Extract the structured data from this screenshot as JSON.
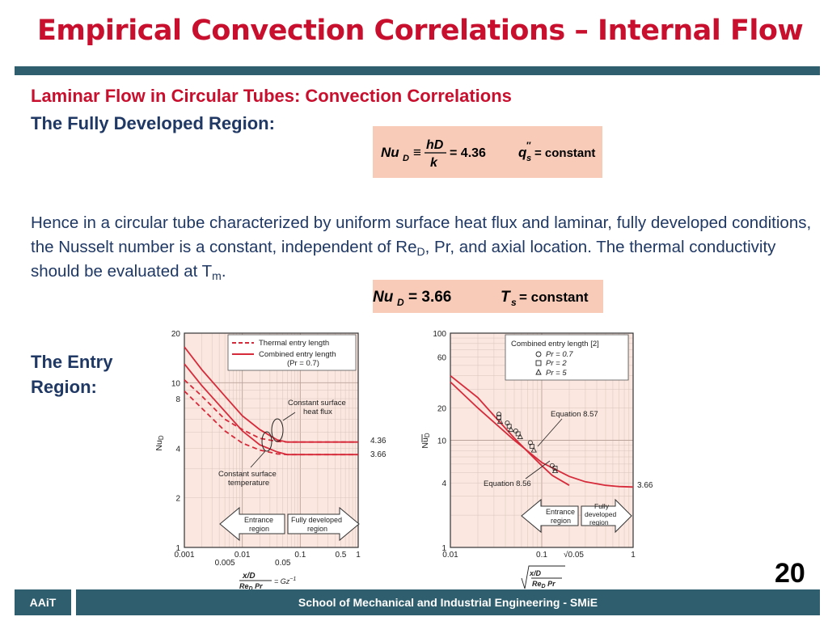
{
  "slide": {
    "title": "Empirical Convection Correlations – Internal Flow",
    "subtitle": "Laminar Flow in Circular Tubes: Convection Correlations",
    "fully_developed_heading": "The Fully Developed Region:",
    "paragraph": {
      "part1": "Hence in a circular tube characterized by uniform surface heat flux and laminar, fully developed conditions, the Nusselt number is a constant, independent of Re",
      "sub1": "D",
      "part2": ", Pr, and axial location. The thermal conductivity should be evaluated at T",
      "sub2": "m",
      "part3": "."
    },
    "entry_heading": "The Entry Region:",
    "equation1": {
      "lhs": "Nu",
      "lhs_sub": "D",
      "frac_num": "hD",
      "frac_den": "k",
      "value": "= 4.36",
      "rhs": "q",
      "rhs_sub": "s",
      "rhs_sup": "″",
      "rhs_value": "= constant"
    },
    "equation2": {
      "lhs": "Nu",
      "lhs_sub": "D",
      "value": "= 3.66",
      "rhs": "T",
      "rhs_sub": "s",
      "rhs_value": "= constant"
    },
    "page_number": "20",
    "footer": {
      "left": "AAiT",
      "main": "School of Mechanical and Industrial Engineering - SMiE"
    }
  },
  "chart_data": [
    {
      "type": "line",
      "xlabel": "x/D / Re_D Pr = Gz⁻¹",
      "ylabel": "Nu_D",
      "x_scale": "log",
      "y_scale": "log",
      "xlim": [
        0.001,
        1
      ],
      "ylim": [
        1,
        20
      ],
      "x_ticks": [
        "0.001",
        "0.005",
        "0.01",
        "0.05",
        "0.1",
        "0.5",
        "1"
      ],
      "y_ticks": [
        "20",
        "10",
        "8",
        "4",
        "2",
        "1"
      ],
      "legend": {
        "position": "top-right",
        "entries": [
          "Thermal entry length",
          "Combined entry length",
          "(Pr = 0.7)"
        ]
      },
      "annotations": [
        "Constant surface heat flux",
        "Constant surface temperature",
        "4.36",
        "3.66"
      ],
      "region_arrows": {
        "left": [
          "Entrance",
          "region"
        ],
        "right": [
          "Fully developed",
          "region"
        ]
      },
      "series": [
        {
          "name": "Thermal entry length",
          "style": "dashed",
          "x": [
            0.001,
            0.002,
            0.005,
            0.01,
            0.02,
            0.04,
            0.06,
            0.1,
            1
          ],
          "y": [
            10.4,
            8.3,
            6.0,
            5.2,
            4.6,
            4.4,
            4.36,
            4.36,
            4.36
          ]
        },
        {
          "name": "Thermal entry length",
          "style": "dashed",
          "x": [
            0.001,
            0.002,
            0.005,
            0.01,
            0.02,
            0.04,
            0.06,
            0.1,
            1
          ],
          "y": [
            8.9,
            7.0,
            5.1,
            4.3,
            3.9,
            3.7,
            3.66,
            3.66,
            3.66
          ]
        },
        {
          "name": "Combined entry length",
          "style": "solid",
          "x": [
            0.001,
            0.002,
            0.005,
            0.01,
            0.02,
            0.04,
            0.06,
            0.1,
            1
          ],
          "y": [
            16.5,
            12.0,
            8.3,
            6.3,
            5.2,
            4.5,
            4.36,
            4.36,
            4.36
          ]
        },
        {
          "name": "Combined entry length",
          "style": "solid",
          "x": [
            0.001,
            0.002,
            0.005,
            0.01,
            0.02,
            0.04,
            0.06,
            0.1,
            1
          ],
          "y": [
            13.0,
            9.6,
            6.7,
            5.1,
            4.2,
            3.8,
            3.66,
            3.66,
            3.66
          ]
        }
      ]
    },
    {
      "type": "line",
      "xlabel": "√(x/D / Re_D Pr)",
      "ylabel": "Nu_D (mean)",
      "x_scale": "log",
      "y_scale": "log",
      "xlim": [
        0.01,
        1
      ],
      "ylim": [
        1,
        100
      ],
      "x_ticks": [
        "0.01",
        "0.1",
        "√0.05",
        "1"
      ],
      "y_ticks": [
        "100",
        "60",
        "20",
        "10",
        "4",
        "1"
      ],
      "legend": {
        "position": "top-right",
        "entries": [
          "Combined entry length [2]",
          "Pr = 0.7",
          "Pr = 2",
          "Pr = 5"
        ]
      },
      "annotations": [
        "Equation 8.57",
        "Equation 8.56",
        "3.66"
      ],
      "region_arrows": {
        "left": [
          "Entrance",
          "region"
        ],
        "right": [
          "Fully",
          "developed",
          "region"
        ]
      },
      "series": [
        {
          "name": "Equation 8.57",
          "style": "solid",
          "x": [
            0.01,
            0.02,
            0.03,
            0.05,
            0.08,
            0.1,
            0.13,
            0.2
          ],
          "y": [
            40,
            25,
            17,
            10.5,
            7,
            5.8,
            4.7,
            3.8
          ]
        },
        {
          "name": "Equation 8.56",
          "style": "solid",
          "x": [
            0.01,
            0.02,
            0.05,
            0.1,
            0.2,
            0.3,
            0.5,
            0.7,
            1
          ],
          "y": [
            35,
            20,
            10,
            6.2,
            4.6,
            4.1,
            3.8,
            3.7,
            3.66
          ]
        }
      ],
      "points": [
        {
          "name": "Pr = 0.7",
          "marker": "circle",
          "x": [
            0.034,
            0.042,
            0.052,
            0.075,
            0.13
          ],
          "y": [
            17.5,
            14.5,
            12.2,
            9.5,
            5.8
          ]
        },
        {
          "name": "Pr = 2",
          "marker": "square",
          "x": [
            0.034,
            0.044,
            0.055,
            0.078,
            0.14
          ],
          "y": [
            16.4,
            13.5,
            11.5,
            8.8,
            5.5
          ]
        },
        {
          "name": "Pr = 5",
          "marker": "triangle",
          "x": [
            0.035,
            0.046,
            0.058,
            0.082,
            0.14
          ],
          "y": [
            15.0,
            12.6,
            10.8,
            8.1,
            5.2
          ]
        }
      ]
    }
  ]
}
